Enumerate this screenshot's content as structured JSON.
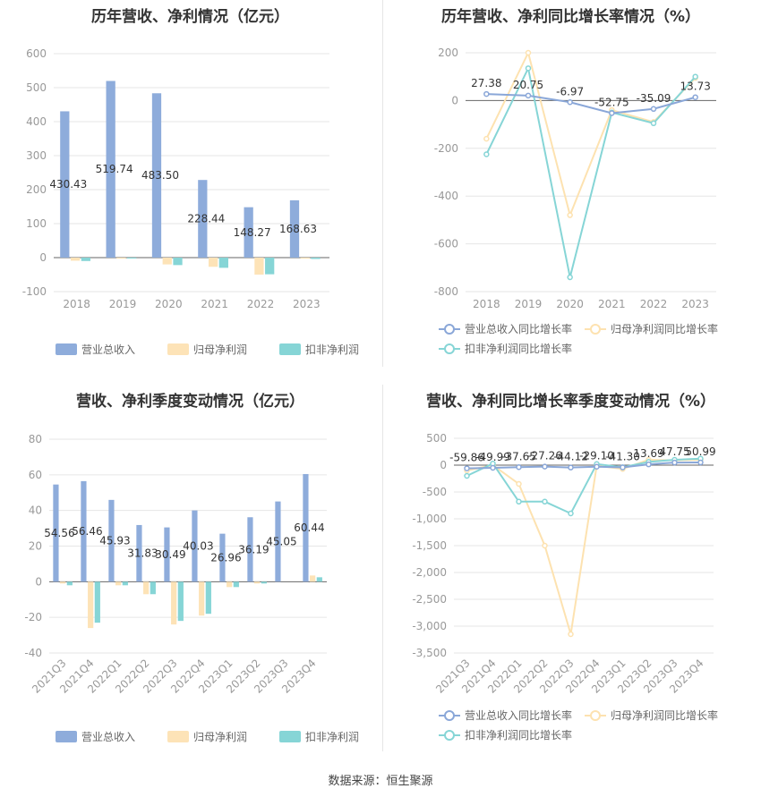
{
  "source_text": "数据来源：恒生聚源",
  "colors": {
    "revenue": "#8eacdb",
    "net_profit": "#fde3b7",
    "deducted_profit": "#86d5d6",
    "revenue_line": "#8aa7d8",
    "net_line": "#fde2b0",
    "deducted_line": "#86d5d6",
    "grid": "#e6e6e6",
    "zero_line": "#666666"
  },
  "chart_data": [
    {
      "id": "annual-amount",
      "type": "bar",
      "title": "历年营收、净利情况（亿元）",
      "categories": [
        "2018",
        "2019",
        "2020",
        "2021",
        "2022",
        "2023"
      ],
      "ylim": [
        -100,
        600
      ],
      "yticks": [
        -100,
        0,
        100,
        200,
        300,
        400,
        500,
        600
      ],
      "grid": true,
      "legend_position": "bottom",
      "series": [
        {
          "name": "营业总收入",
          "values": [
            430.43,
            519.74,
            483.5,
            228.44,
            148.27,
            168.63
          ],
          "labels": [
            "430.43",
            "519.74",
            "483.50",
            "228.44",
            "148.27",
            "168.63"
          ]
        },
        {
          "name": "归母净利润",
          "values": [
            -9,
            -3,
            -20,
            -27,
            -50,
            -3
          ]
        },
        {
          "name": "扣非净利润",
          "values": [
            -10,
            -2,
            -22,
            -30,
            -49,
            -4
          ]
        }
      ]
    },
    {
      "id": "annual-growth",
      "type": "line",
      "title": "历年营收、净利同比增长率情况（%）",
      "categories": [
        "2018",
        "2019",
        "2020",
        "2021",
        "2022",
        "2023"
      ],
      "ylim": [
        -800,
        200
      ],
      "yticks": [
        -800,
        -600,
        -400,
        -200,
        0,
        200
      ],
      "grid": true,
      "legend_position": "bottom",
      "series": [
        {
          "name": "营业总收入同比增长率",
          "values": [
            27.38,
            20.75,
            -6.97,
            -52.75,
            -35.09,
            13.73
          ],
          "labels": [
            "27.38",
            "20.75",
            "-6.97",
            "-52.75",
            "-35.09",
            "13.73"
          ]
        },
        {
          "name": "归母净利润同比增长率",
          "values": [
            -160,
            200,
            -480,
            -40,
            -90,
            95
          ]
        },
        {
          "name": "扣非净利润同比增长率",
          "values": [
            -225,
            135,
            -740,
            -50,
            -95,
            100
          ]
        }
      ]
    },
    {
      "id": "quarterly-amount",
      "type": "bar",
      "title": "营收、净利季度变动情况（亿元）",
      "categories": [
        "2021Q3",
        "2021Q4",
        "2022Q1",
        "2022Q2",
        "2022Q3",
        "2022Q4",
        "2023Q1",
        "2023Q2",
        "2023Q3",
        "2023Q4"
      ],
      "ylim": [
        -40,
        80
      ],
      "yticks": [
        -40,
        -20,
        0,
        20,
        40,
        60,
        80
      ],
      "grid": true,
      "legend_position": "bottom",
      "series": [
        {
          "name": "营业总收入",
          "values": [
            54.56,
            56.46,
            45.93,
            31.83,
            30.49,
            40.03,
            26.96,
            36.19,
            45.05,
            60.44
          ],
          "labels": [
            "54.56",
            "56.46",
            "45.93",
            "31.83",
            "30.49",
            "40.03",
            "26.96",
            "36.19",
            "45.05",
            "60.44"
          ]
        },
        {
          "name": "归母净利润",
          "values": [
            -1,
            -26,
            -2,
            -7,
            -24,
            -19,
            -3,
            -1,
            0,
            3.5
          ]
        },
        {
          "name": "扣非净利润",
          "values": [
            -2,
            -23,
            -2,
            -7,
            -22,
            -18,
            -3,
            -1,
            0,
            2.5
          ]
        }
      ]
    },
    {
      "id": "quarterly-growth",
      "type": "line",
      "title": "营收、净利同比增长率季度变动情况（%）",
      "categories": [
        "2021Q3",
        "2021Q4",
        "2022Q1",
        "2022Q2",
        "2022Q3",
        "2022Q4",
        "2023Q1",
        "2023Q2",
        "2023Q3",
        "2023Q4"
      ],
      "ylim": [
        -3500,
        500
      ],
      "yticks": [
        -3500,
        -3000,
        -2500,
        -2000,
        -1500,
        -1000,
        -500,
        0,
        500
      ],
      "ytick_labels": [
        "-3,500",
        "-3,000",
        "-2,500",
        "-2,000",
        "-1,500",
        "-1,000",
        "-500",
        "0",
        "500"
      ],
      "grid": true,
      "legend_position": "bottom",
      "series": [
        {
          "name": "营业总收入同比增长率",
          "values": [
            -59.86,
            -49.99,
            -37.65,
            -27.26,
            -44.12,
            -29.1,
            -41.3,
            13.69,
            47.75,
            50.99
          ],
          "labels": [
            "-59.86",
            "-49.99",
            "-37.65",
            "-27.26",
            "-44.12",
            "-29.10",
            "-41.30",
            "13.69",
            "47.75",
            "50.99"
          ]
        },
        {
          "name": "归母净利润同比增长率",
          "values": [
            -100,
            0,
            -350,
            -1500,
            -3150,
            -10,
            -70,
            100,
            90,
            100
          ]
        },
        {
          "name": "扣非净利润同比增长率",
          "values": [
            -200,
            30,
            -680,
            -680,
            -900,
            20,
            -40,
            60,
            100,
            120
          ]
        }
      ]
    }
  ]
}
